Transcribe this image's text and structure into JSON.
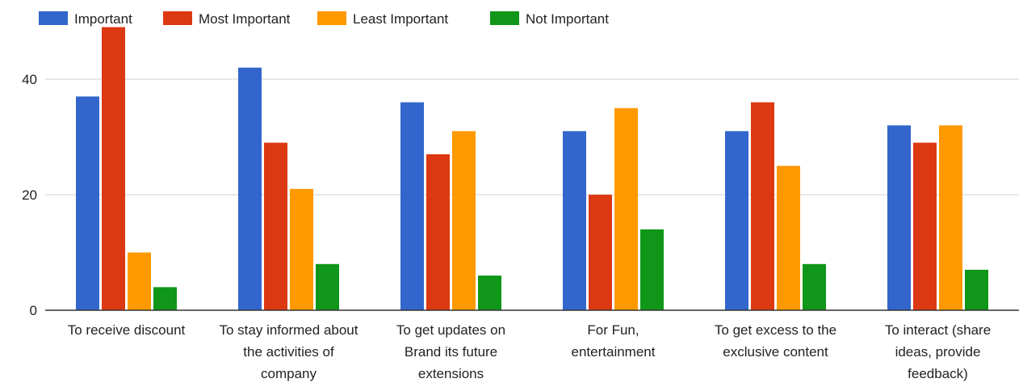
{
  "chart_data": {
    "type": "bar",
    "title": "",
    "xlabel": "",
    "ylabel": "",
    "ylim": [
      0,
      50
    ],
    "yticks": [
      0,
      20,
      40
    ],
    "grid": true,
    "legend_position": "top-left",
    "categories": [
      [
        "To receive discount"
      ],
      [
        "To stay informed about",
        "the activities of",
        "company"
      ],
      [
        "To get updates on",
        "Brand its future",
        "extensions"
      ],
      [
        "For Fun,",
        "entertainment"
      ],
      [
        "To get excess to the",
        "exclusive content"
      ],
      [
        "To interact (share",
        "ideas, provide",
        "feedback)"
      ]
    ],
    "series": [
      {
        "name": "Important",
        "color": "#3366cc",
        "values": [
          37,
          42,
          36,
          31,
          31,
          32
        ]
      },
      {
        "name": "Most Important",
        "color": "#dc3912",
        "values": [
          49,
          29,
          27,
          20,
          36,
          29
        ]
      },
      {
        "name": "Least Important",
        "color": "#ff9900",
        "values": [
          10,
          21,
          31,
          35,
          25,
          32
        ]
      },
      {
        "name": "Not Important",
        "color": "#109618",
        "values": [
          4,
          8,
          6,
          14,
          8,
          7
        ]
      }
    ]
  }
}
